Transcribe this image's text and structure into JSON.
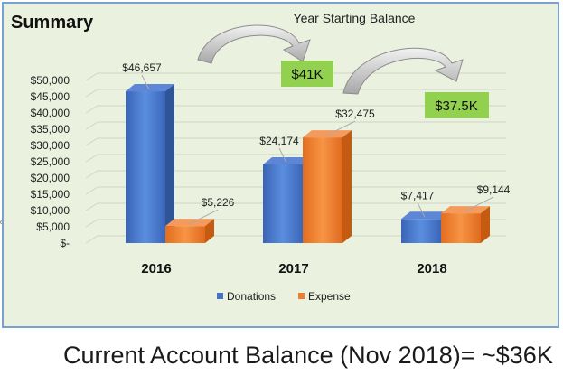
{
  "chart_data": {
    "type": "bar",
    "title": "Summary",
    "categories": [
      "2016",
      "2017",
      "2018"
    ],
    "series": [
      {
        "name": "Donations",
        "color": "#4472c4",
        "values": [
          46657,
          24174,
          7417
        ],
        "labels": [
          "$46,657",
          "$24,174",
          "$7,417"
        ]
      },
      {
        "name": "Expense",
        "color": "#ed7d31",
        "values": [
          5226,
          32475,
          9144
        ],
        "labels": [
          "$5,226",
          "$32,475",
          "$9,144"
        ]
      }
    ],
    "ylim": [
      0,
      50000
    ],
    "yticks": [
      "$-",
      "$5,000",
      "$10,000",
      "$15,000",
      "$20,000",
      "$25,000",
      "$30,000",
      "$35,000",
      "$40,000",
      "$45,000",
      "$50,000"
    ],
    "legend_position": "bottom",
    "grid": true,
    "annotation_title": "Year Starting Balance",
    "balance_callouts": [
      "$41K",
      "$37.5K"
    ],
    "callout_color": "#92d050"
  },
  "footer": "Current Account Balance (Nov 2018)= ~$36K"
}
